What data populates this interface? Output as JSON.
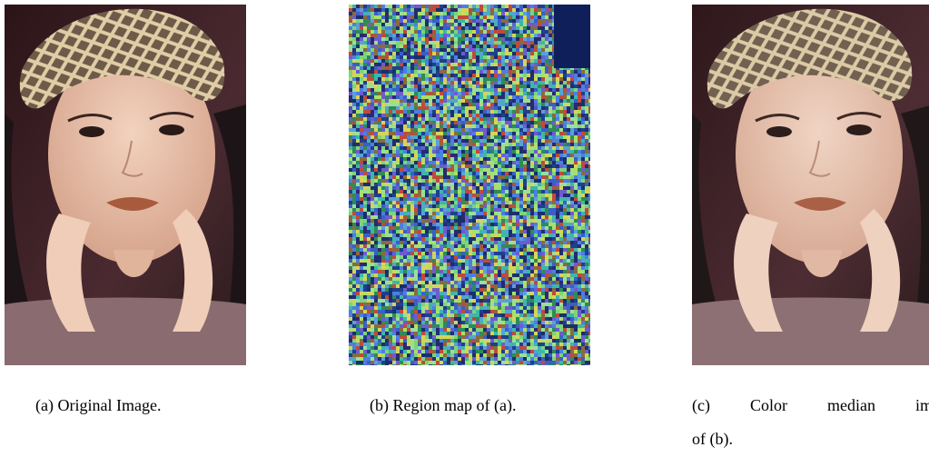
{
  "figure": {
    "panels": [
      {
        "id": "a",
        "caption_tag": "(a)",
        "caption_text": "Original Image.",
        "kind": "photo"
      },
      {
        "id": "b",
        "caption_tag": "(b)",
        "caption_text": "Region map of (a).",
        "kind": "region-map"
      },
      {
        "id": "c",
        "caption_tag": "(c)",
        "caption_words": [
          "Color",
          "median",
          "image"
        ],
        "caption_line2": "of (b).",
        "kind": "photo"
      }
    ],
    "colors": {
      "background": "#ffffff",
      "hat": "#cdb58c",
      "skin": "#e9c2ac",
      "hair": "#1d1417",
      "sweater": "#8a6b6f",
      "backdrop": "#3b1f26",
      "lips": "#a85a3c"
    }
  }
}
